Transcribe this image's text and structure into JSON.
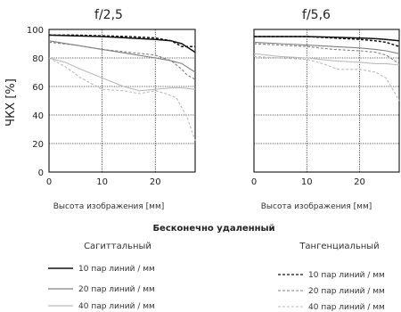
{
  "footer": {
    "subtitle": "Бесконечно удаленный",
    "sagittal_heading": "Сагиттальный",
    "tangential_heading": "Тангенциальный",
    "sagittal_legend": [
      "10 пар линий / мм",
      "20 пар линий / мм",
      "40 пар линий / мм"
    ],
    "tangential_legend": [
      "10 пар линий / мм",
      "20 пар линий / мм",
      "40 пар линий / мм"
    ]
  },
  "colors": {
    "s10": "#111111",
    "s20": "#808080",
    "s40": "#bbbbbb"
  },
  "chart_data": [
    {
      "type": "line",
      "title": "f/2,5",
      "xlabel": "Высота изображения [мм]",
      "ylabel": "ЧКХ [%]",
      "xlim": [
        0,
        27.5
      ],
      "ylim": [
        0,
        100
      ],
      "xticks": [
        0,
        10,
        20
      ],
      "yticks": [
        0,
        20,
        40,
        60,
        80,
        100
      ],
      "grid": true,
      "series": [
        {
          "name": "Сагиттальный 10 пар линий / мм",
          "style": "solid",
          "lines_per_mm": 10,
          "x": [
            0,
            5,
            10,
            15,
            20,
            23,
            25,
            27.5
          ],
          "y": [
            96,
            95.5,
            95,
            94,
            93,
            92,
            90,
            84
          ]
        },
        {
          "name": "Сагиттальный 20 пар линий / мм",
          "style": "solid",
          "lines_per_mm": 20,
          "x": [
            0,
            5,
            10,
            15,
            20,
            23,
            25,
            27.5
          ],
          "y": [
            92,
            89,
            86,
            83,
            80,
            78,
            76,
            70
          ]
        },
        {
          "name": "Сагиттальный 40 пар линий / мм",
          "style": "solid",
          "lines_per_mm": 40,
          "x": [
            0,
            3,
            6,
            10,
            14,
            17,
            20,
            23,
            25,
            27.5
          ],
          "y": [
            80,
            77,
            72,
            66,
            60,
            57,
            58,
            59,
            59,
            58
          ]
        },
        {
          "name": "Тангенциальный 10 пар линий / мм",
          "style": "dashed",
          "lines_per_mm": 10,
          "x": [
            0,
            5,
            10,
            15,
            20,
            23,
            25,
            27.5
          ],
          "y": [
            96,
            96,
            95.5,
            95,
            94,
            92,
            88,
            88
          ]
        },
        {
          "name": "Тангенциальный 20 пар линий / мм",
          "style": "dashed",
          "lines_per_mm": 20,
          "x": [
            0,
            5,
            10,
            15,
            20,
            23,
            25,
            26,
            27.5
          ],
          "y": [
            91,
            89,
            86,
            84,
            82,
            78,
            72,
            68,
            65
          ]
        },
        {
          "name": "Тангенциальный 40 пар линий / мм",
          "style": "dashed",
          "lines_per_mm": 40,
          "x": [
            0,
            3,
            6,
            10,
            14,
            17,
            20,
            22,
            24,
            26,
            27.5
          ],
          "y": [
            80,
            74,
            66,
            58,
            57,
            55,
            57,
            55,
            52,
            38,
            22
          ]
        }
      ]
    },
    {
      "type": "line",
      "title": "f/5,6",
      "xlabel": "Высота изображения [мм]",
      "ylabel": "",
      "xlim": [
        0,
        27.5
      ],
      "ylim": [
        0,
        100
      ],
      "xticks": [
        0,
        10,
        20
      ],
      "yticks": [
        0,
        20,
        40,
        60,
        80,
        100
      ],
      "grid": true,
      "series": [
        {
          "name": "Сагиттальный 10 пар линий / мм",
          "style": "solid",
          "lines_per_mm": 10,
          "x": [
            0,
            5,
            10,
            15,
            20,
            23,
            25,
            27.5
          ],
          "y": [
            95,
            95,
            95,
            94.5,
            94,
            93.5,
            93,
            92
          ]
        },
        {
          "name": "Сагиттальный 20 пар линий / мм",
          "style": "solid",
          "lines_per_mm": 20,
          "x": [
            0,
            5,
            10,
            15,
            20,
            23,
            25,
            27.5
          ],
          "y": [
            91,
            90,
            89,
            88,
            87,
            86,
            85,
            83
          ]
        },
        {
          "name": "Сагиттальный 40 пар линий / мм",
          "style": "solid",
          "lines_per_mm": 40,
          "x": [
            0,
            5,
            10,
            15,
            20,
            23,
            25,
            27.5
          ],
          "y": [
            83,
            81,
            80,
            78,
            77,
            76,
            76,
            75
          ]
        },
        {
          "name": "Тангенциальный 10 пар линий / мм",
          "style": "dashed",
          "lines_per_mm": 10,
          "x": [
            0,
            5,
            10,
            15,
            20,
            23,
            25,
            27.5
          ],
          "y": [
            95,
            95,
            95,
            94,
            93,
            92,
            91,
            88
          ]
        },
        {
          "name": "Тангенциальный 20 пар линий / мм",
          "style": "dashed",
          "lines_per_mm": 20,
          "x": [
            0,
            5,
            10,
            15,
            20,
            23,
            25,
            27.5
          ],
          "y": [
            90,
            89,
            88,
            86,
            85,
            84,
            82,
            76
          ]
        },
        {
          "name": "Тангенциальный 40 пар линий / мм",
          "style": "dashed",
          "lines_per_mm": 40,
          "x": [
            0,
            5,
            10,
            13,
            16,
            20,
            23,
            25,
            27.5
          ],
          "y": [
            81,
            80,
            79,
            76,
            72,
            72,
            70,
            66,
            50
          ]
        }
      ]
    }
  ]
}
